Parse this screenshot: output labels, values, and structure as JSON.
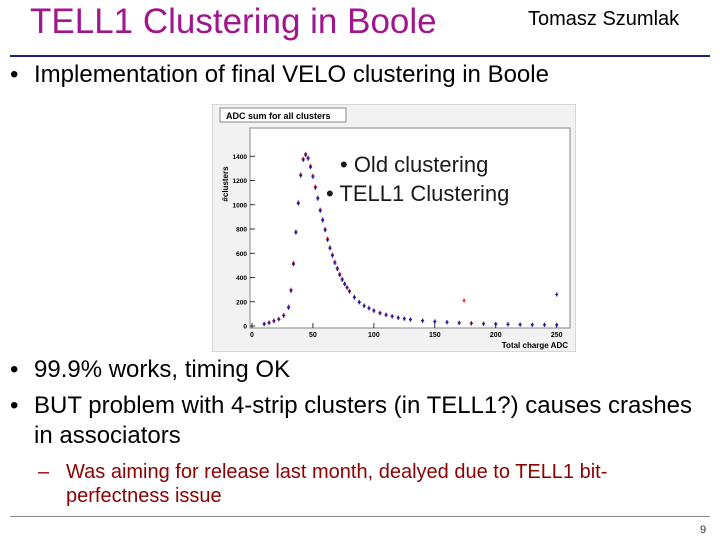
{
  "slide": {
    "title": "TELL1 Clustering in Boole",
    "author": "Tomasz Szumlak",
    "page_number": "9",
    "bullets": [
      "Implementation of final VELO clustering in Boole",
      "99.9% works, timing OK",
      "BUT problem with 4-strip clusters (in TELL1?) causes crashes in associators"
    ],
    "bullet_marker": "•",
    "sub_bullet_marker": "–",
    "sub_bullets": [
      "Was aiming for release last month, dealyed due to TELL1 bit-perfectness issue"
    ],
    "legend": [
      "• Old clustering",
      "• TELL1 Clustering"
    ]
  },
  "chart_data": {
    "type": "scatter",
    "title": "ADC sum for all clusters",
    "xlabel": "Total charge ADC",
    "ylabel": "#clusters",
    "xlim": [
      0,
      256
    ],
    "ylim": [
      0,
      1600
    ],
    "xticks": [
      0,
      50,
      100,
      150,
      200,
      250
    ],
    "yticks": [
      0,
      200,
      400,
      600,
      800,
      1000,
      1200,
      1400
    ],
    "series": [
      {
        "name": "Old clustering",
        "color": "#e02020",
        "x": [
          10,
          14,
          18,
          22,
          26,
          30,
          32,
          34,
          36,
          38,
          40,
          42,
          44,
          46,
          48,
          50,
          52,
          54,
          56,
          58,
          60,
          62,
          64,
          66,
          68,
          70,
          72,
          74,
          76,
          78,
          80,
          84,
          88,
          92,
          96,
          100,
          105,
          110,
          115,
          120,
          125,
          130,
          140,
          150,
          160,
          170,
          180,
          190,
          200,
          210,
          220,
          230,
          240,
          250
        ],
        "y": [
          20,
          30,
          45,
          60,
          90,
          160,
          300,
          520,
          780,
          1020,
          1250,
          1380,
          1420,
          1390,
          1320,
          1240,
          1150,
          1060,
          960,
          880,
          800,
          720,
          650,
          590,
          530,
          480,
          430,
          390,
          350,
          320,
          290,
          240,
          200,
          170,
          150,
          130,
          110,
          95,
          82,
          70,
          62,
          55,
          45,
          38,
          32,
          27,
          23,
          20,
          17,
          15,
          13,
          11,
          10,
          9
        ]
      },
      {
        "name": "TELL1 Clustering",
        "color": "#1a1aa0",
        "x": [
          10,
          14,
          18,
          22,
          26,
          30,
          32,
          34,
          36,
          38,
          40,
          42,
          44,
          46,
          48,
          50,
          52,
          54,
          56,
          58,
          60,
          62,
          64,
          66,
          68,
          70,
          72,
          74,
          76,
          78,
          80,
          84,
          88,
          92,
          96,
          100,
          105,
          110,
          115,
          120,
          125,
          130,
          140,
          150,
          160,
          170,
          180,
          190,
          200,
          210,
          220,
          230,
          240,
          250
        ],
        "y": [
          15,
          25,
          40,
          55,
          85,
          150,
          290,
          510,
          770,
          1010,
          1240,
          1370,
          1410,
          1380,
          1310,
          1230,
          1140,
          1050,
          950,
          870,
          790,
          710,
          640,
          580,
          520,
          470,
          420,
          380,
          345,
          315,
          285,
          235,
          195,
          165,
          145,
          125,
          105,
          90,
          78,
          67,
          60,
          52,
          43,
          36,
          30,
          25,
          21,
          18,
          15,
          13,
          11,
          10,
          9,
          8
        ]
      }
    ],
    "outliers": [
      {
        "series": "Old clustering",
        "x": 174,
        "y": 210
      },
      {
        "series": "TELL1 Clustering",
        "x": 250,
        "y": 260
      }
    ]
  }
}
